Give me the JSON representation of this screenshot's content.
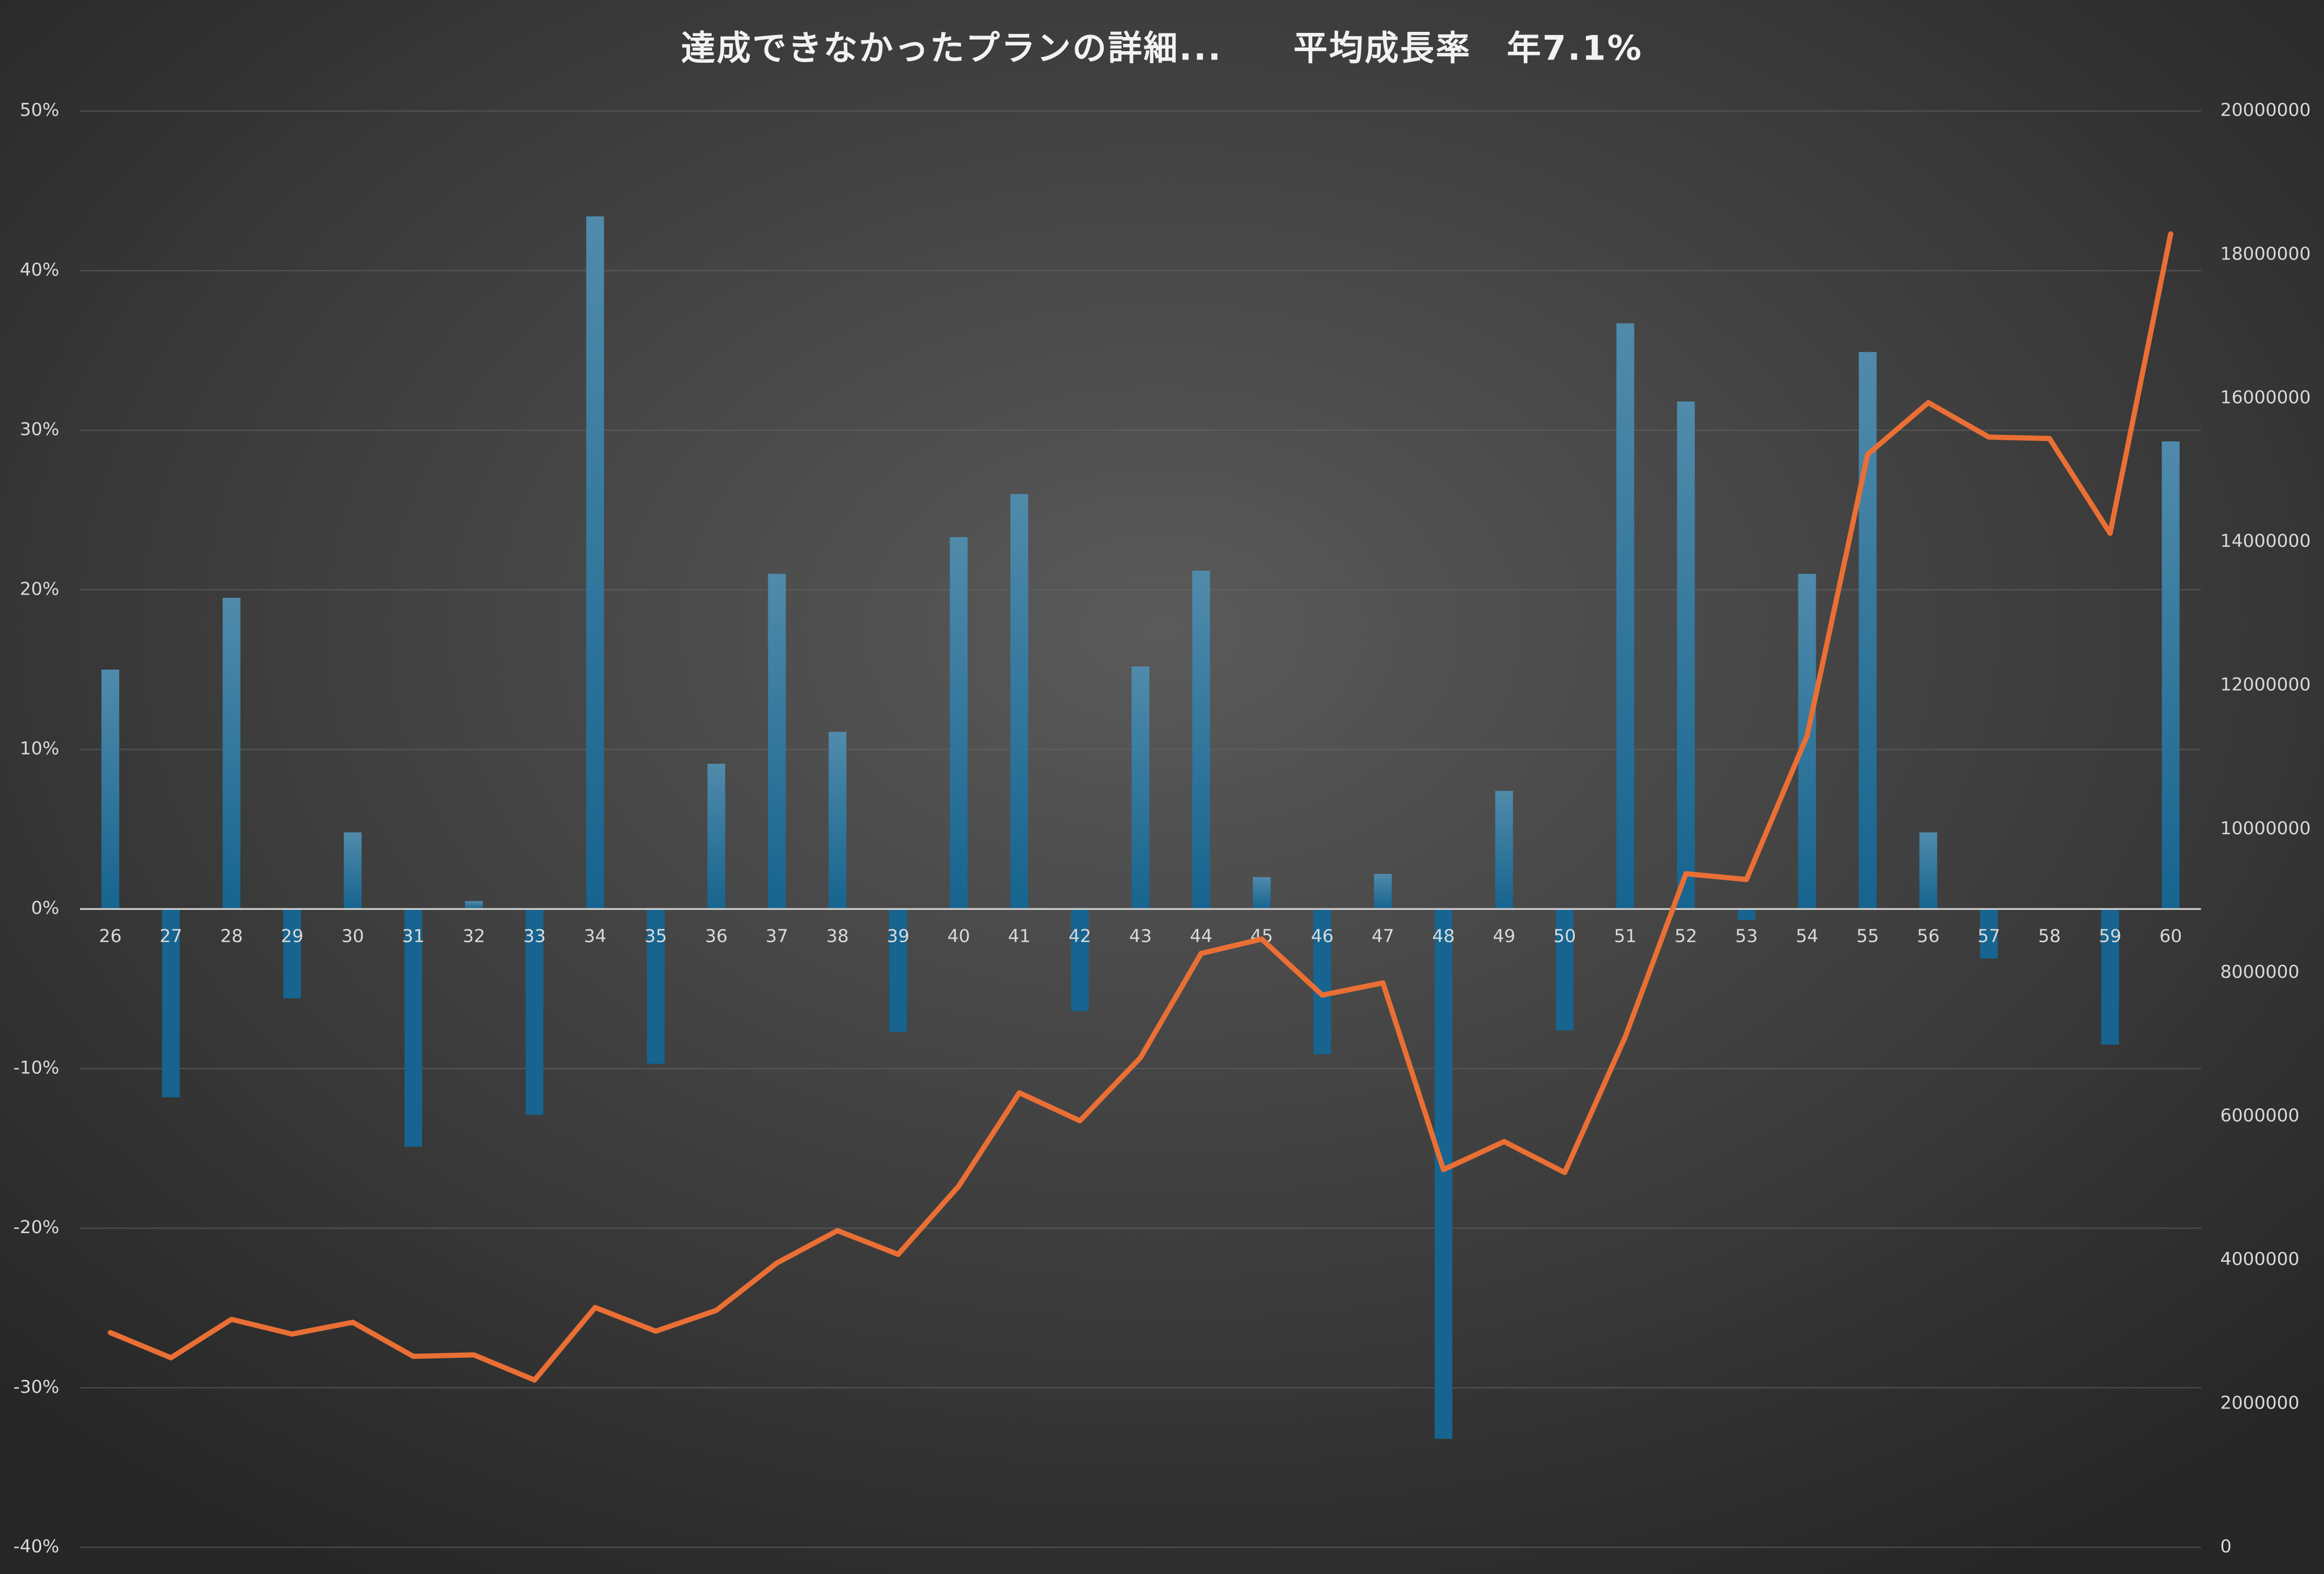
{
  "chart_data": {
    "type": "bar",
    "title": "達成できなかったプランの詳細...　　平均成長率　年7.1%",
    "categories": [
      "26",
      "27",
      "28",
      "29",
      "30",
      "31",
      "32",
      "33",
      "34",
      "35",
      "36",
      "37",
      "38",
      "39",
      "40",
      "41",
      "42",
      "43",
      "44",
      "45",
      "46",
      "47",
      "48",
      "49",
      "50",
      "51",
      "52",
      "53",
      "54",
      "55",
      "56",
      "57",
      "58",
      "59",
      "60"
    ],
    "series": [
      {
        "type": "bar",
        "color": "#16648f",
        "values": [
          15.0,
          -11.8,
          19.5,
          -5.6,
          4.8,
          -14.9,
          0.5,
          -12.9,
          43.4,
          -9.7,
          9.1,
          21.0,
          11.1,
          -7.7,
          23.3,
          26.0,
          -6.4,
          15.2,
          21.2,
          2.0,
          -9.1,
          2.2,
          -33.2,
          7.4,
          -7.6,
          36.7,
          31.8,
          -0.7,
          21.0,
          34.9,
          4.8,
          -3.1,
          0,
          -8.5,
          29.3
        ]
      },
      {
        "type": "line",
        "axis": "y2",
        "color": "#ea6f34",
        "values": [
          2990000,
          2640000,
          3175000,
          2970000,
          3134000,
          2660000,
          2680000,
          2330000,
          3340000,
          3010000,
          3300000,
          3960000,
          4410000,
          4080000,
          5030000,
          6330000,
          5940000,
          6820000,
          8270000,
          8470000,
          7690000,
          7860000,
          5260000,
          5650000,
          5220000,
          7110000,
          9380000,
          9300000,
          11300000,
          15220000,
          15940000,
          15460000,
          15440000,
          14120000,
          18290000
        ]
      }
    ],
    "ylim": [
      -40,
      50
    ],
    "yticks": [
      {
        "value": -40,
        "label": "-40%"
      },
      {
        "value": -30,
        "label": "-30%"
      },
      {
        "value": -20,
        "label": "-20%"
      },
      {
        "value": -10,
        "label": "-10%"
      },
      {
        "value": 0,
        "label": "0%"
      },
      {
        "value": 10,
        "label": "10%"
      },
      {
        "value": 20,
        "label": "20%"
      },
      {
        "value": 30,
        "label": "30%"
      },
      {
        "value": 40,
        "label": "40%"
      },
      {
        "value": 50,
        "label": "50%"
      }
    ],
    "y2lim": [
      0,
      20000000
    ],
    "y2ticks": [
      0,
      2000000,
      4000000,
      6000000,
      8000000,
      10000000,
      12000000,
      14000000,
      16000000,
      18000000,
      20000000
    ],
    "grid": true
  }
}
